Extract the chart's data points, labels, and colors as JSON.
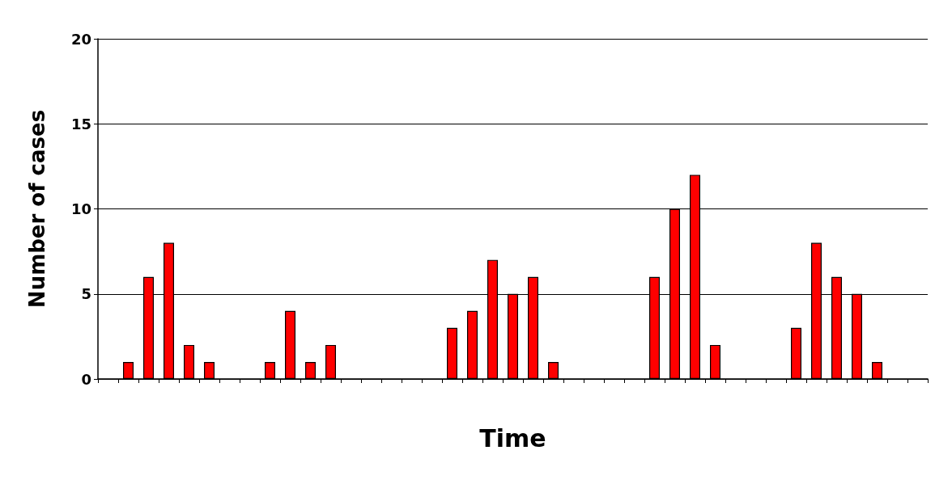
{
  "chart_data": {
    "type": "bar",
    "xlabel": "Time",
    "ylabel": "Number of cases",
    "categories": [
      null,
      null,
      null,
      null,
      null,
      null,
      null,
      null,
      null,
      null,
      null,
      null,
      null,
      null,
      null,
      null,
      null,
      null,
      null,
      null,
      null,
      null,
      null,
      null,
      null,
      null,
      null,
      null,
      null,
      null,
      null,
      null,
      null,
      null,
      null,
      null,
      null,
      null,
      null,
      null,
      null
    ],
    "values": [
      0,
      1,
      6,
      8,
      2,
      1,
      0,
      0,
      1,
      4,
      1,
      2,
      0,
      0,
      0,
      0,
      0,
      3,
      4,
      7,
      5,
      6,
      1,
      0,
      0,
      0,
      0,
      6,
      10,
      12,
      2,
      0,
      0,
      0,
      3,
      8,
      6,
      5,
      1,
      0,
      0
    ],
    "color": "#ff0000",
    "ylim": [
      0,
      20
    ],
    "yticks": [
      0,
      5,
      10,
      15,
      20
    ],
    "grid": "y"
  }
}
